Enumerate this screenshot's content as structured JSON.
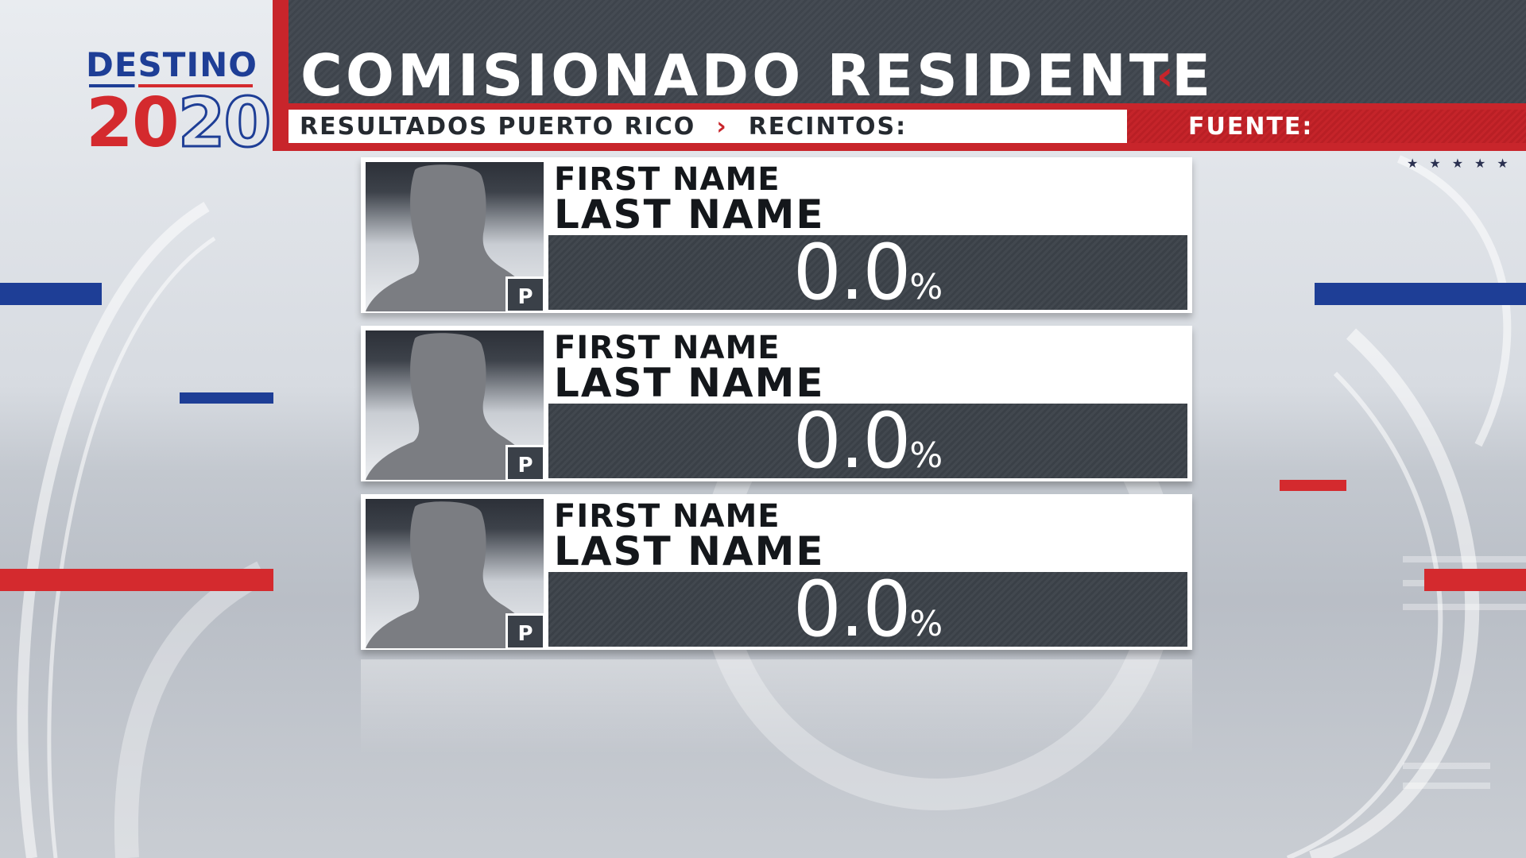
{
  "logo": {
    "top": "DESTINO",
    "year_red": "20",
    "year_outline": "20"
  },
  "header": {
    "title": "COMISIONADO RESIDENTE",
    "title_chevron": "‹",
    "subtitle_left": "RESULTADOS PUERTO RICO",
    "subtitle_chevron": "›",
    "subtitle_right": "RECINTOS:",
    "source_label": "FUENTE:"
  },
  "stars": "★★★★★",
  "candidates": [
    {
      "first_name": "FIRST NAME",
      "last_name": "LAST NAME",
      "percent": "0.0",
      "percent_sign": "%",
      "party": "P"
    },
    {
      "first_name": "FIRST NAME",
      "last_name": "LAST NAME",
      "percent": "0.0",
      "percent_sign": "%",
      "party": "P"
    },
    {
      "first_name": "FIRST NAME",
      "last_name": "LAST NAME",
      "percent": "0.0",
      "percent_sign": "%",
      "party": "P"
    }
  ],
  "colors": {
    "red": "#c8252b",
    "blue": "#1e3e96",
    "dark": "#42484f"
  }
}
